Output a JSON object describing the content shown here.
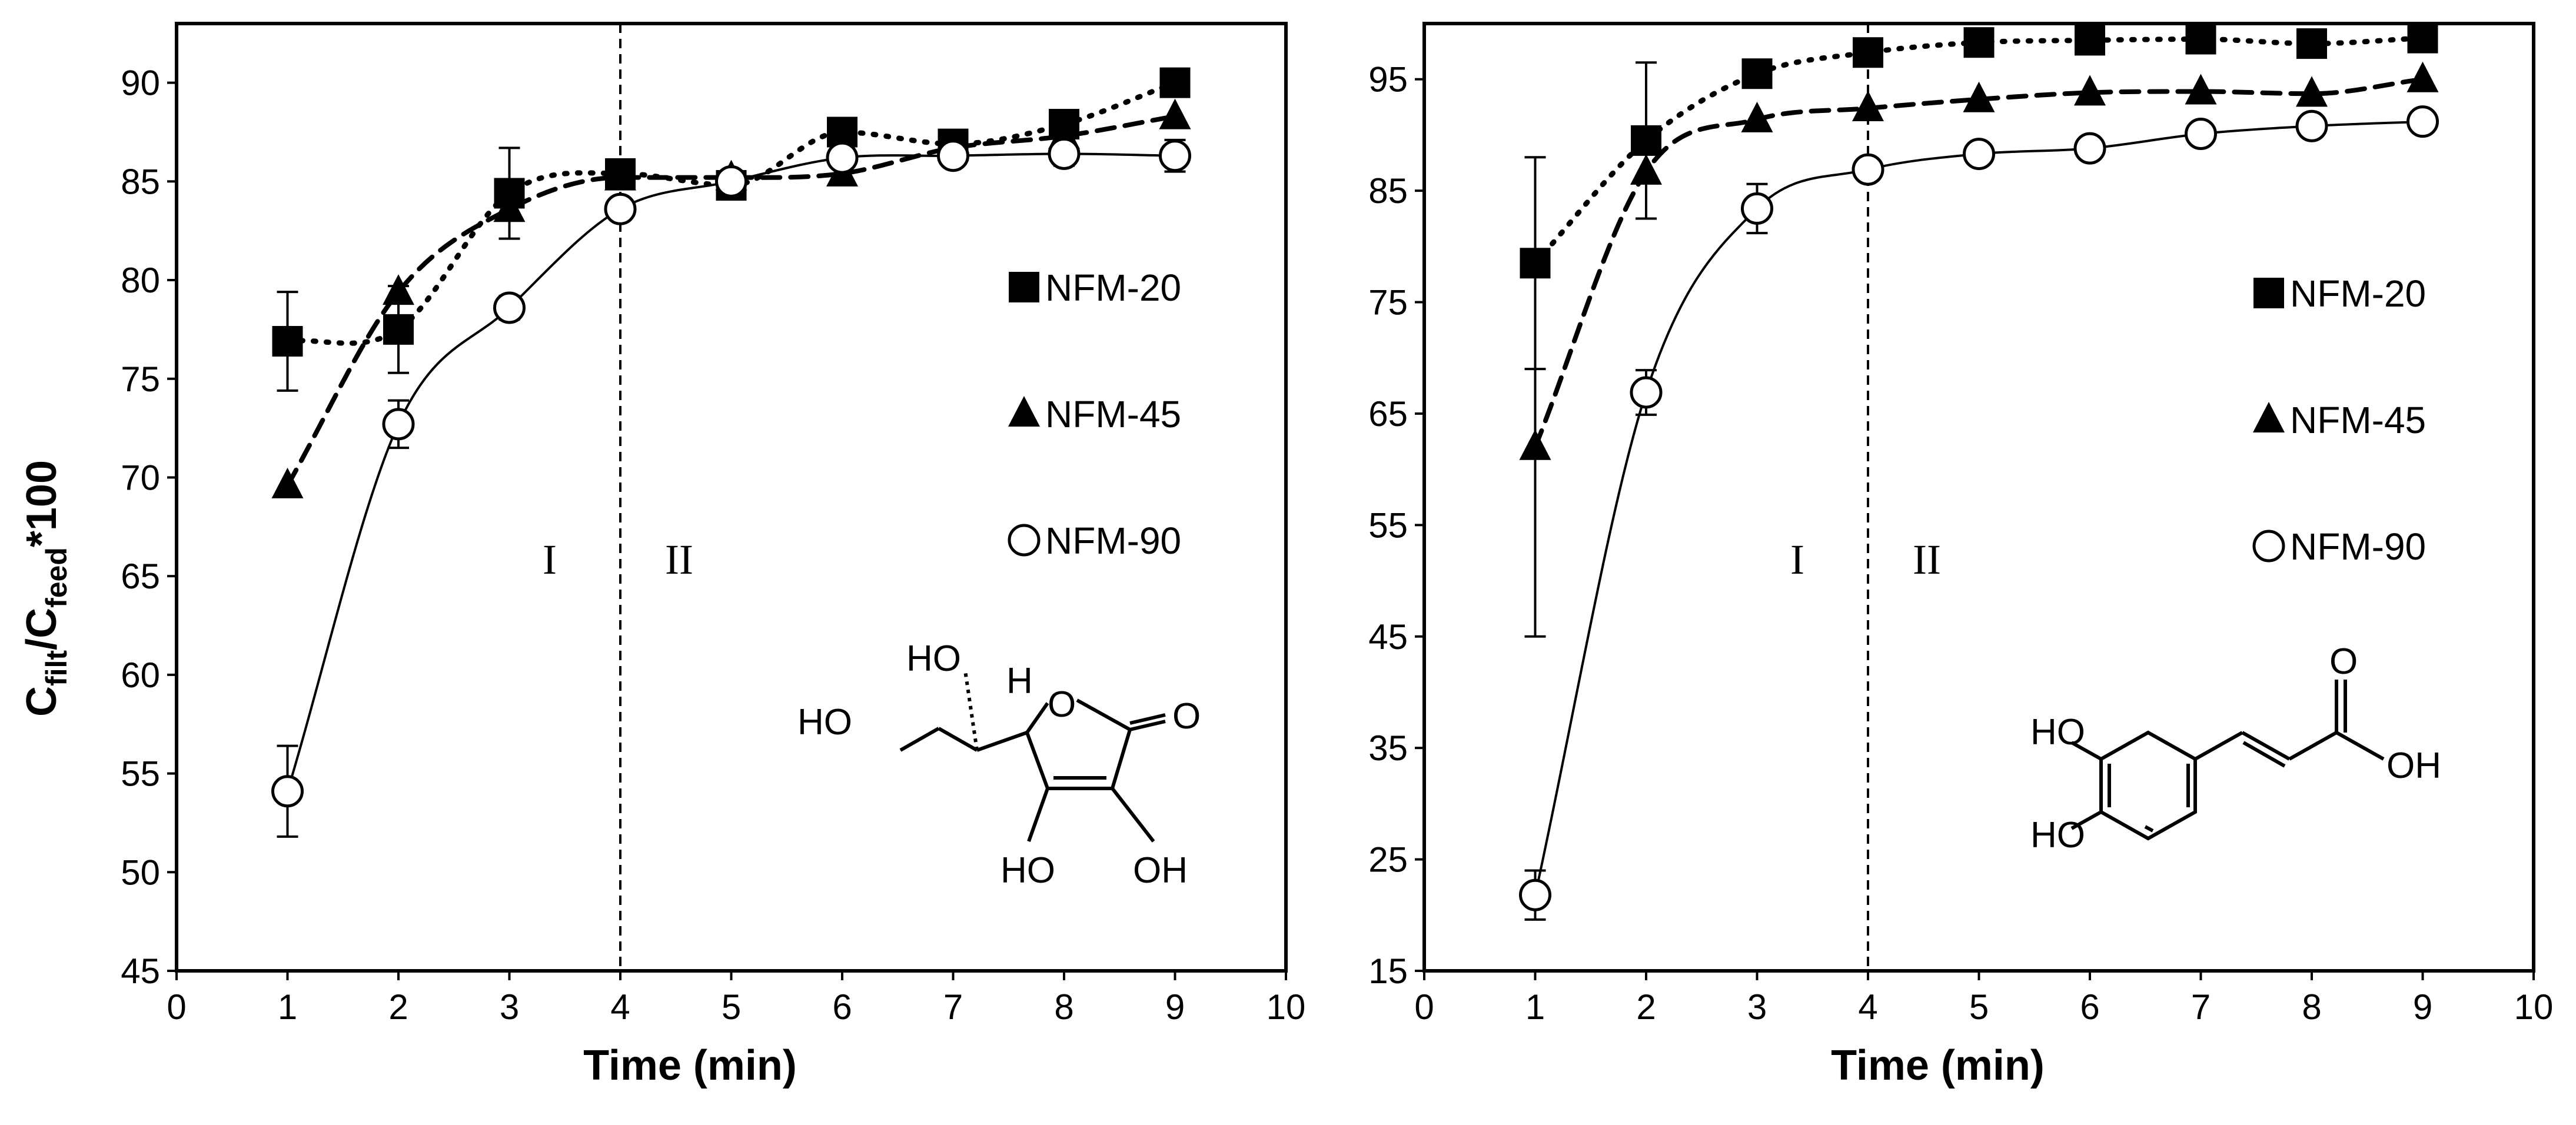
{
  "chart_data": [
    {
      "type": "line",
      "xlabel": "Time (min)",
      "ylabel": {
        "c1": "C",
        "s1": "filt",
        "mid": "/C",
        "s2": "feed",
        "tail": "*100"
      },
      "xlim": [
        0,
        10
      ],
      "ylim": [
        45,
        93
      ],
      "xticks": [
        "0",
        "1",
        "2",
        "3",
        "4",
        "5",
        "6",
        "7",
        "8",
        "9",
        "10"
      ],
      "yticks": [
        "45",
        "50",
        "55",
        "60",
        "65",
        "70",
        "75",
        "80",
        "85",
        "90"
      ],
      "divider_x": 4,
      "regions": [
        "I",
        "II"
      ],
      "legend_position": "right",
      "series": [
        {
          "name": "NFM-20",
          "marker": "square",
          "line": "dotted",
          "x": [
            1,
            2,
            3,
            4,
            5,
            6,
            7,
            8,
            9
          ],
          "y": [
            76.9,
            77.5,
            84.4,
            85.4,
            84.8,
            87.5,
            86.9,
            87.9,
            90.0
          ],
          "err": [
            2.5,
            2.2,
            2.3,
            0,
            0,
            0,
            0,
            0,
            0
          ]
        },
        {
          "name": "NFM-45",
          "marker": "triangle",
          "line": "dashed",
          "x": [
            1,
            2,
            3,
            4,
            5,
            6,
            7,
            8,
            9
          ],
          "y": [
            69.6,
            79.4,
            83.6,
            85.2,
            85.2,
            85.4,
            86.7,
            87.3,
            88.3
          ],
          "err": [
            0,
            0,
            0,
            0,
            0,
            0,
            0,
            0,
            0
          ]
        },
        {
          "name": "NFM-90",
          "marker": "circle",
          "line": "solid",
          "x": [
            1,
            2,
            3,
            4,
            5,
            6,
            7,
            8,
            9
          ],
          "y": [
            54.1,
            72.7,
            78.6,
            83.6,
            85.0,
            86.2,
            86.3,
            86.4,
            86.3
          ],
          "err": [
            2.3,
            1.2,
            0.6,
            0,
            0,
            0.5,
            0,
            0.6,
            0.8
          ]
        }
      ],
      "molecule_labels": [
        "HO",
        "HO",
        "H",
        "O",
        "O",
        "HO",
        "OH"
      ]
    },
    {
      "type": "line",
      "xlabel": "Time (min)",
      "xlim": [
        0,
        10
      ],
      "ylim": [
        15,
        100
      ],
      "xticks": [
        "0",
        "1",
        "2",
        "3",
        "4",
        "5",
        "6",
        "7",
        "8",
        "9",
        "10"
      ],
      "yticks": [
        "15",
        "25",
        "35",
        "45",
        "55",
        "65",
        "75",
        "85",
        "95"
      ],
      "divider_x": 4,
      "regions": [
        "I",
        "II"
      ],
      "legend_position": "right",
      "series": [
        {
          "name": "NFM-20",
          "marker": "square",
          "line": "dotted",
          "x": [
            1,
            2,
            3,
            4,
            5,
            6,
            7,
            8,
            9
          ],
          "y": [
            78.5,
            89.5,
            95.5,
            97.4,
            98.3,
            98.5,
            98.6,
            98.2,
            98.7
          ],
          "err": [
            9.5,
            7.0,
            0,
            0,
            0,
            0,
            0,
            0,
            0
          ]
        },
        {
          "name": "NFM-45",
          "marker": "triangle",
          "line": "dashed",
          "x": [
            1,
            2,
            3,
            4,
            5,
            6,
            7,
            8,
            9
          ],
          "y": [
            62.0,
            86.7,
            91.4,
            92.4,
            93.2,
            93.8,
            93.9,
            93.7,
            95.0
          ],
          "err": [
            17.0,
            0,
            0,
            0,
            0,
            0,
            0,
            0,
            0
          ]
        },
        {
          "name": "NFM-90",
          "marker": "circle",
          "line": "solid",
          "x": [
            1,
            2,
            3,
            4,
            5,
            6,
            7,
            8,
            9
          ],
          "y": [
            21.8,
            66.9,
            83.4,
            86.9,
            88.3,
            88.8,
            90.1,
            90.8,
            91.2
          ],
          "err": [
            2.2,
            2.0,
            2.2,
            0,
            0.7,
            0.5,
            0,
            0,
            0.8
          ]
        }
      ],
      "molecule_labels": [
        "O",
        "HO",
        "OH",
        "HO"
      ]
    }
  ],
  "colors": {
    "ink": "#000000",
    "background": "#ffffff"
  }
}
